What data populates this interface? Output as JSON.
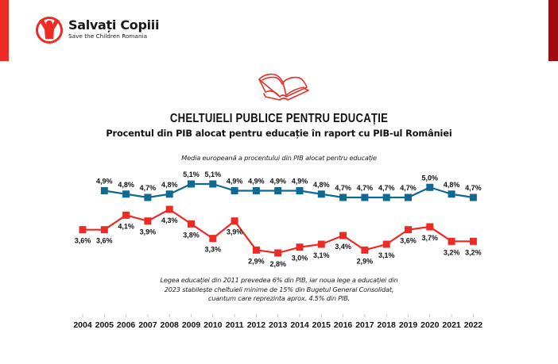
{
  "brand": {
    "name": "Salvați Copiii",
    "tagline": "Save the Children Romania",
    "logo_icon": "child-raised-arms-icon",
    "accent_red": "#ee2a24",
    "dark_red": "#a00b0f"
  },
  "header_icon": "open-book-icon",
  "chart_data": {
    "type": "line",
    "title": "CHELTUIELI PUBLICE PENTRU EDUCAȚIE",
    "subtitle": "Procentul din PIB alocat pentru educație în raport cu PIB-ul României",
    "annotation_top": "Media europeană a procentului din PIB alocat pentru educație",
    "annotation_bottom": "Legea educației din 2011 prevedea 6% din PIB, iar noua lege a educației din 2023 stabilește cheltuieli minime de 15% din Bugetul General Consolidat, cuantum care reprezinta aprox. 4.5% din PIB.",
    "xlabel": "",
    "ylabel": "",
    "grid": false,
    "legend": "none",
    "categories": [
      "2004",
      "2005",
      "2006",
      "2007",
      "2008",
      "2009",
      "2010",
      "2011",
      "2012",
      "2013",
      "2014",
      "2015",
      "2016",
      "2017",
      "2018",
      "2019",
      "2020",
      "2021",
      "2022"
    ],
    "series": [
      {
        "name": "Media europeană",
        "color": "#0e6a93",
        "values": [
          null,
          4.9,
          4.8,
          4.7,
          4.8,
          5.1,
          5.1,
          4.9,
          4.9,
          4.9,
          4.9,
          4.8,
          4.7,
          4.7,
          4.7,
          4.7,
          5.0,
          4.8,
          4.7
        ],
        "labels": [
          "",
          "4,9%",
          "4,8%",
          "4,7%",
          "4,8%",
          "5,1%",
          "5,1%",
          "4,9%",
          "4,9%",
          "4,9%",
          "4,9%",
          "4,8%",
          "4,7%",
          "4,7%",
          "4,7%",
          "4,7%",
          "5,0%",
          "4,8%",
          "4,7%"
        ]
      },
      {
        "name": "România",
        "color": "#ee2a24",
        "values": [
          3.6,
          3.6,
          4.1,
          3.9,
          4.3,
          3.8,
          3.3,
          3.9,
          2.9,
          2.8,
          3.0,
          3.1,
          3.4,
          2.9,
          3.1,
          3.6,
          3.7,
          3.2,
          3.2
        ],
        "labels": [
          "3,6%",
          "3,6%",
          "4,1%",
          "3,9%",
          "4,3%",
          "3,8%",
          "3,3%",
          "3,9%",
          "2,9%",
          "2,8%",
          "3,0%",
          "3,1%",
          "3,4%",
          "2,9%",
          "3,1%",
          "3,6%",
          "3,7%",
          "3,2%",
          "3,2%"
        ]
      }
    ]
  }
}
